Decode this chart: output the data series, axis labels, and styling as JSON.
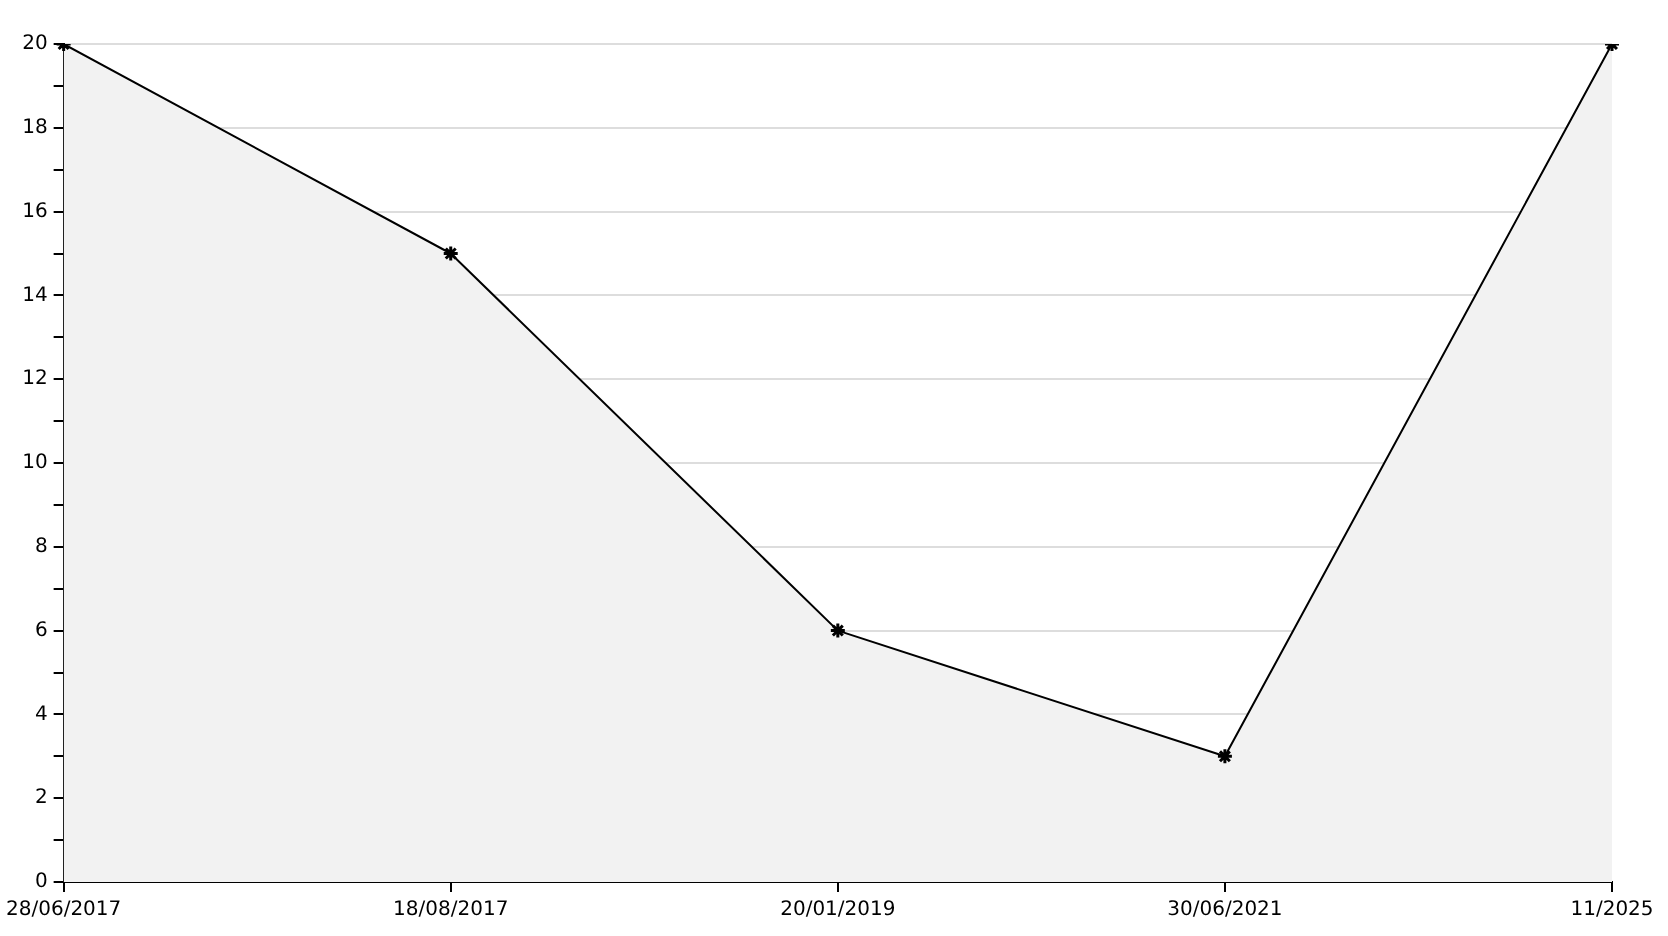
{
  "chart_data": {
    "type": "area",
    "categories": [
      "28/06/2017",
      "18/08/2017",
      "20/01/2019",
      "30/06/2021",
      "11/2025"
    ],
    "series": [
      {
        "color": "#000000",
        "values": [
          20,
          15,
          6,
          3,
          20
        ]
      }
    ],
    "ylim": [
      0,
      20
    ],
    "yticks": [
      0,
      {
        "value": 1,
        "label": null
      },
      2,
      {
        "value": 3,
        "label": null
      },
      4,
      {
        "value": 5,
        "label": null
      },
      6,
      {
        "value": 7,
        "label": null
      },
      8,
      {
        "value": 9,
        "label": null
      },
      10,
      {
        "value": 11,
        "label": null
      },
      12,
      {
        "value": 13,
        "label": null
      },
      14,
      {
        "value": 15,
        "label": null
      },
      16,
      {
        "value": 17,
        "label": null
      },
      18,
      {
        "value": 19,
        "label": null
      },
      20
    ],
    "grid": "y",
    "marker": "cross",
    "line_style": "solid",
    "legend": false
  }
}
